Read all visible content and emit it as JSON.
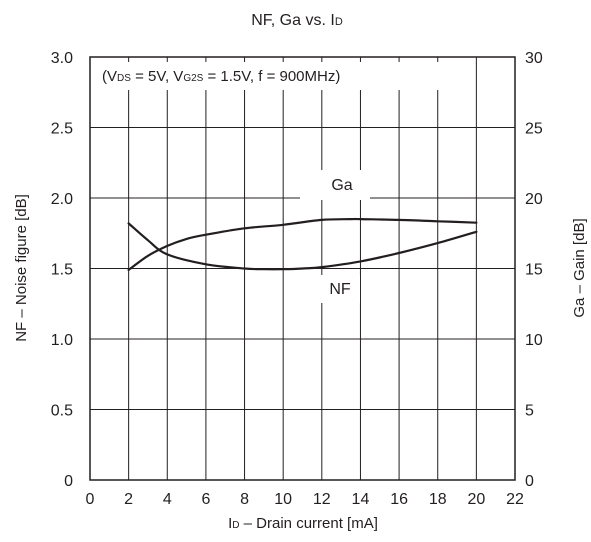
{
  "chart_data": {
    "type": "line",
    "title": "NF, Ga vs. ID",
    "title_parts": {
      "prefix": "NF, Ga vs. I",
      "sub": "D"
    },
    "conditions_text": {
      "p1": "(V",
      "s1": "DS",
      "p2": " = 5V, V",
      "s2": "G2S",
      "p3": " = 1.5V, f = 900MHz)"
    },
    "xlabel": "ID – Drain current [mA]",
    "xlabel_parts": {
      "prefix": "I",
      "sub": "D",
      "suffix": " – Drain current [mA]"
    },
    "ylabel_left": "NF – Noise figure [dB]",
    "ylabel_right": "Ga – Gain [dB]",
    "xlim": [
      0,
      22
    ],
    "ylim_left": [
      0,
      3.0
    ],
    "ylim_right": [
      0,
      30
    ],
    "x_ticks": [
      "0",
      "2",
      "4",
      "6",
      "8",
      "10",
      "12",
      "14",
      "16",
      "18",
      "20",
      "22"
    ],
    "y_ticks_left": [
      "0",
      "0.5",
      "1.0",
      "1.5",
      "2.0",
      "2.5",
      "3.0"
    ],
    "y_ticks_right": [
      "0",
      "5",
      "10",
      "15",
      "20",
      "25",
      "30"
    ],
    "grid": true,
    "series": [
      {
        "name": "Ga",
        "axis": "right",
        "x": [
          2,
          3,
          4,
          5,
          6,
          8,
          10,
          12,
          13.5,
          14,
          16,
          18,
          20
        ],
        "y": [
          14.9,
          15.9,
          16.6,
          17.1,
          17.4,
          17.85,
          18.1,
          18.45,
          18.5,
          18.5,
          18.45,
          18.35,
          18.25
        ]
      },
      {
        "name": "NF",
        "axis": "left",
        "x": [
          2,
          3,
          4,
          6,
          8,
          9,
          10,
          11,
          12,
          14,
          16,
          18,
          20
        ],
        "y": [
          1.82,
          1.7,
          1.6,
          1.53,
          1.5,
          1.495,
          1.495,
          1.5,
          1.51,
          1.55,
          1.61,
          1.68,
          1.76
        ]
      }
    ],
    "annotations": [
      {
        "text": "Ga",
        "series": "Ga"
      },
      {
        "text": "NF",
        "series": "NF"
      }
    ]
  }
}
